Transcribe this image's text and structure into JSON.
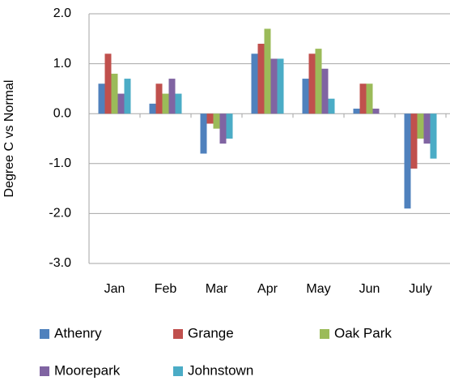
{
  "chart_data": {
    "type": "bar",
    "y_label": "Degree C vs Normal",
    "categories": [
      "Jan",
      "Feb",
      "Mar",
      "Apr",
      "May",
      "Jun",
      "July"
    ],
    "series": [
      {
        "name": "Athenry",
        "color": "#4f81bd",
        "values": [
          0.6,
          0.2,
          -0.8,
          1.2,
          0.7,
          0.1,
          -1.9
        ]
      },
      {
        "name": "Grange",
        "color": "#c0504d",
        "values": [
          1.2,
          0.6,
          -0.2,
          1.4,
          1.2,
          0.6,
          -1.1
        ]
      },
      {
        "name": "Oak Park",
        "color": "#9bbb59",
        "values": [
          0.8,
          0.4,
          -0.3,
          1.7,
          1.3,
          0.6,
          -0.5
        ]
      },
      {
        "name": "Moorepark",
        "color": "#8064a2",
        "values": [
          0.4,
          0.7,
          -0.6,
          1.1,
          0.9,
          0.1,
          -0.6
        ]
      },
      {
        "name": "Johnstown",
        "color": "#4bacc6",
        "values": [
          0.7,
          0.4,
          -0.5,
          1.1,
          0.3,
          0,
          -0.9
        ]
      }
    ],
    "ylim": [
      -3,
      2
    ],
    "yticks": [
      {
        "value": 2,
        "label": "2.0"
      },
      {
        "value": 1,
        "label": "1.0"
      },
      {
        "value": 0,
        "label": "0.0"
      },
      {
        "value": -1,
        "label": "-1.0"
      },
      {
        "value": -2,
        "label": "-2.0"
      },
      {
        "value": -3,
        "label": "-3.0"
      }
    ],
    "grid": true
  }
}
